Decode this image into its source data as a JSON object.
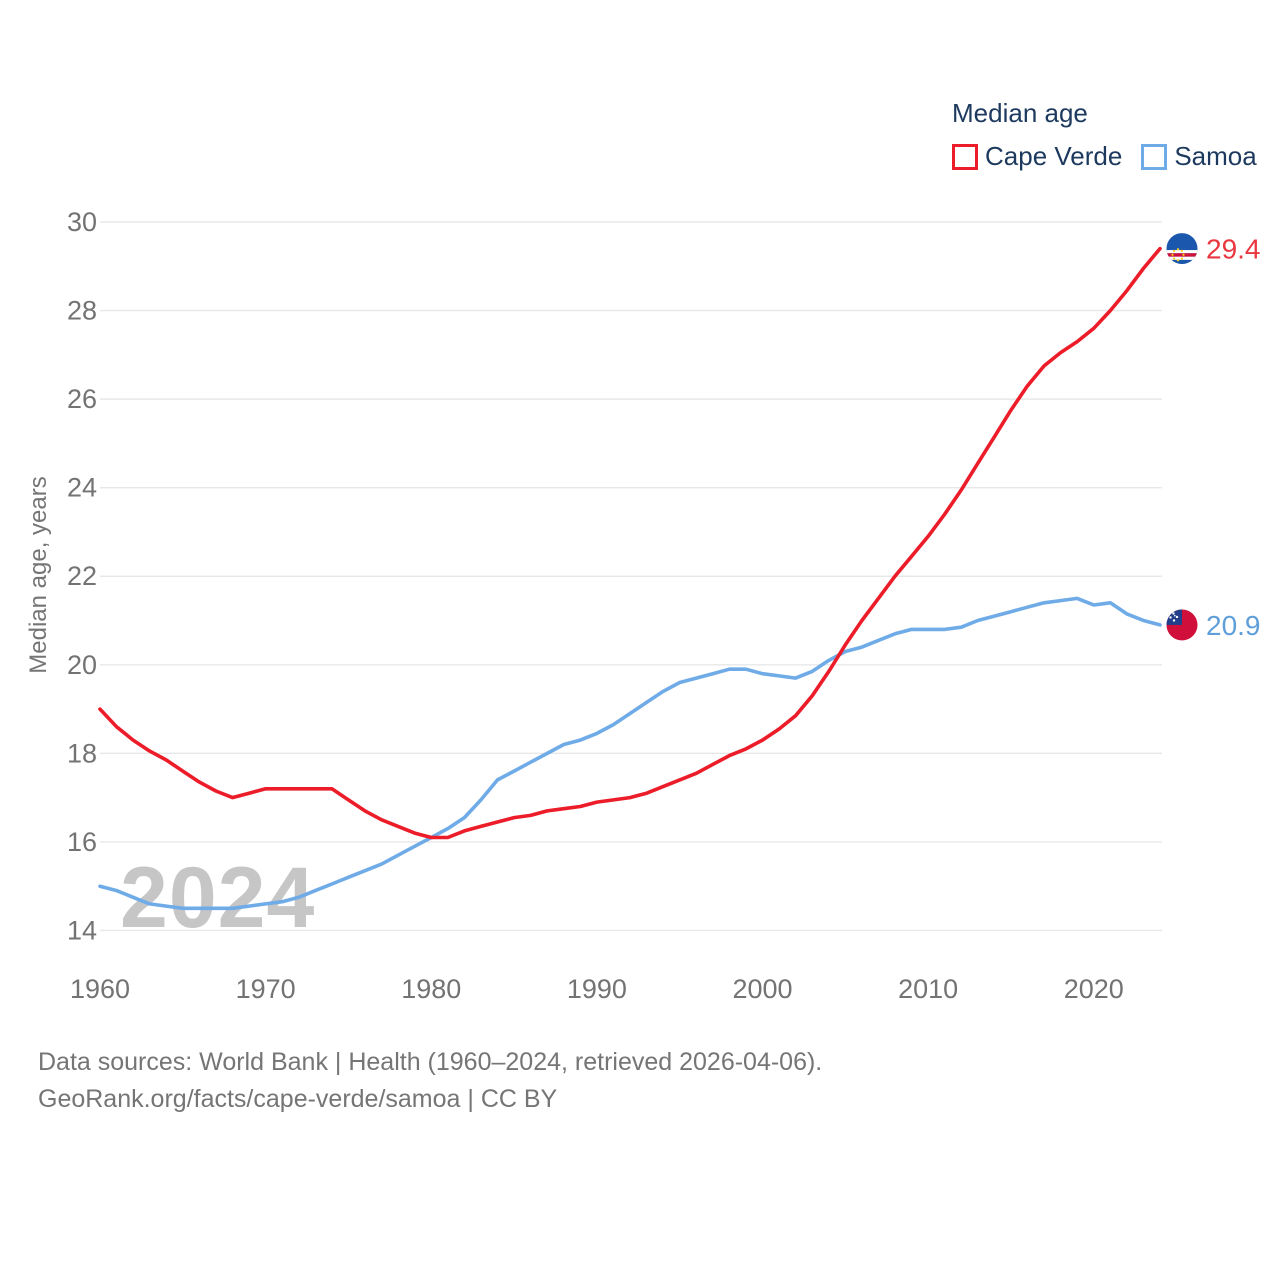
{
  "legend": {
    "title": "Median age",
    "items": [
      {
        "label": "Cape Verde",
        "color": "#ec1c29"
      },
      {
        "label": "Samoa",
        "color": "#6fabe7"
      }
    ]
  },
  "watermark": "2024",
  "footer": {
    "line1": "Data sources: World Bank | Health (1960–2024, retrieved 2026-04-06).",
    "line2": "GeoRank.org/facts/cape-verde/samoa | CC BY"
  },
  "chart_data": {
    "type": "line",
    "title": "Median age",
    "ylabel": "Median age, years",
    "xlabel": "",
    "x_start": 1960,
    "x_end": 2024,
    "x_step": 1,
    "ylim": [
      14,
      30
    ],
    "grid": "horizontal",
    "legend_position": "top-right",
    "y_ticks": [
      14,
      16,
      18,
      20,
      22,
      24,
      26,
      28,
      30
    ],
    "x_ticks": [
      1960,
      1970,
      1980,
      1990,
      2000,
      2010,
      2020
    ],
    "series": [
      {
        "name": "Samoa",
        "color": "#6fabe7",
        "label_color": "#5f9fd9",
        "end_label": "20.9",
        "flag": "samoa",
        "values": [
          15.0,
          14.9,
          14.75,
          14.6,
          14.55,
          14.5,
          14.5,
          14.5,
          14.5,
          14.55,
          14.6,
          14.65,
          14.75,
          14.9,
          15.05,
          15.2,
          15.35,
          15.5,
          15.7,
          15.9,
          16.1,
          16.3,
          16.55,
          16.95,
          17.4,
          17.6,
          17.8,
          18.0,
          18.2,
          18.3,
          18.45,
          18.65,
          18.9,
          19.15,
          19.4,
          19.6,
          19.7,
          19.8,
          19.9,
          19.9,
          19.8,
          19.75,
          19.7,
          19.85,
          20.1,
          20.3,
          20.4,
          20.55,
          20.7,
          20.8,
          20.8,
          20.8,
          20.85,
          21.0,
          21.1,
          21.2,
          21.3,
          21.4,
          21.45,
          21.5,
          21.35,
          21.4,
          21.15,
          21.0,
          20.9
        ]
      },
      {
        "name": "Cape Verde",
        "color": "#ec1c29",
        "label_color": "#e8373f",
        "end_label": "29.4",
        "flag": "cape-verde",
        "values": [
          19.0,
          18.6,
          18.3,
          18.05,
          17.85,
          17.6,
          17.35,
          17.15,
          17.0,
          17.1,
          17.2,
          17.2,
          17.2,
          17.2,
          17.2,
          16.95,
          16.7,
          16.5,
          16.35,
          16.2,
          16.1,
          16.1,
          16.25,
          16.35,
          16.45,
          16.55,
          16.6,
          16.7,
          16.75,
          16.8,
          16.9,
          16.95,
          17.0,
          17.1,
          17.25,
          17.4,
          17.55,
          17.75,
          17.95,
          18.1,
          18.3,
          18.55,
          18.85,
          19.3,
          19.85,
          20.45,
          21.0,
          21.5,
          22.0,
          22.45,
          22.9,
          23.4,
          23.95,
          24.55,
          25.15,
          25.75,
          26.3,
          26.75,
          27.05,
          27.3,
          27.6,
          28.0,
          28.45,
          28.95,
          29.4
        ]
      }
    ]
  }
}
